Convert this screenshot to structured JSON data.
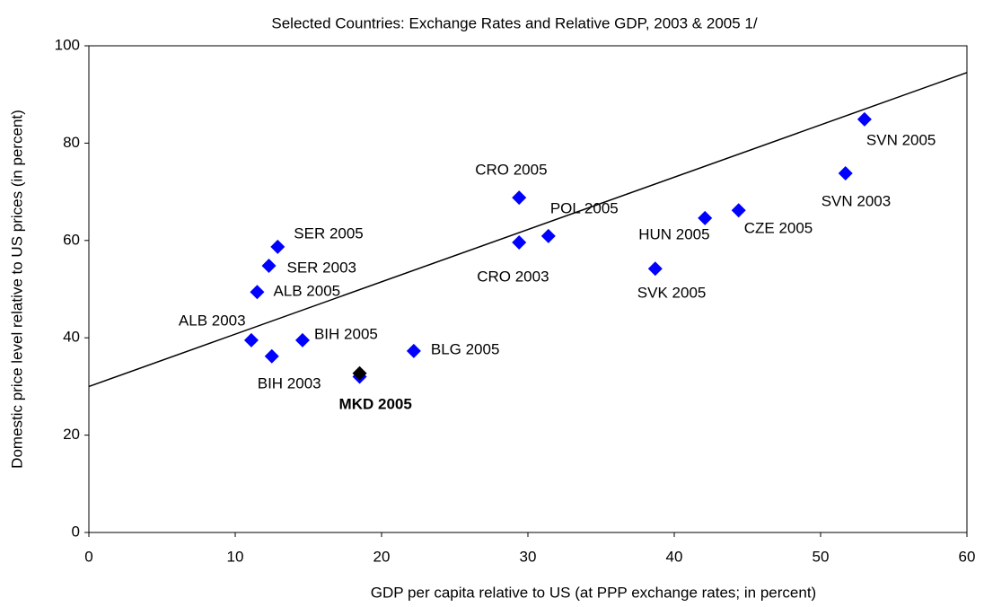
{
  "chart_data": {
    "type": "scatter",
    "title": "Selected Countries: Exchange Rates and Relative GDP, 2003 & 2005 1/",
    "x_label": "GDP per capita relative to US  (at PPP exchange rates; in percent)",
    "y_label": "Domestic price level relative to US prices (in percent)",
    "xlim": [
      0,
      60
    ],
    "xticks": [
      0,
      10,
      20,
      30,
      40,
      50,
      60
    ],
    "ylim": [
      0,
      100
    ],
    "yticks": [
      0,
      20,
      40,
      60,
      80,
      100
    ],
    "points": {
      "color": "#0000ff",
      "labels": [
        "ALB 2003",
        "ALB 2005",
        "SER 2003",
        "SER 2005",
        "BIH 2003",
        "BIH 2005",
        null,
        "BLG 2005",
        "CRO 2003",
        "CRO 2005",
        "POL 2005",
        "SVK 2005",
        "HUN 2005",
        "CZE 2005",
        "SVN 2003",
        "SVN 2005"
      ],
      "x": [
        11.1,
        11.5,
        12.3,
        12.9,
        12.5,
        14.6,
        18.5,
        22.2,
        29.4,
        29.4,
        31.4,
        38.7,
        42.1,
        44.4,
        51.7,
        53.0
      ],
      "y": [
        39.5,
        49.4,
        54.8,
        58.7,
        36.2,
        39.5,
        32.0,
        37.3,
        59.6,
        68.8,
        60.9,
        54.2,
        64.6,
        66.2,
        73.8,
        84.9
      ]
    },
    "highlight": {
      "label": "MKD 2005",
      "x": 18.5,
      "y": 32.7,
      "color": "#000000"
    },
    "trendline": {
      "x": [
        0,
        60
      ],
      "y": [
        30.0,
        94.5
      ],
      "color": "#000000"
    }
  }
}
